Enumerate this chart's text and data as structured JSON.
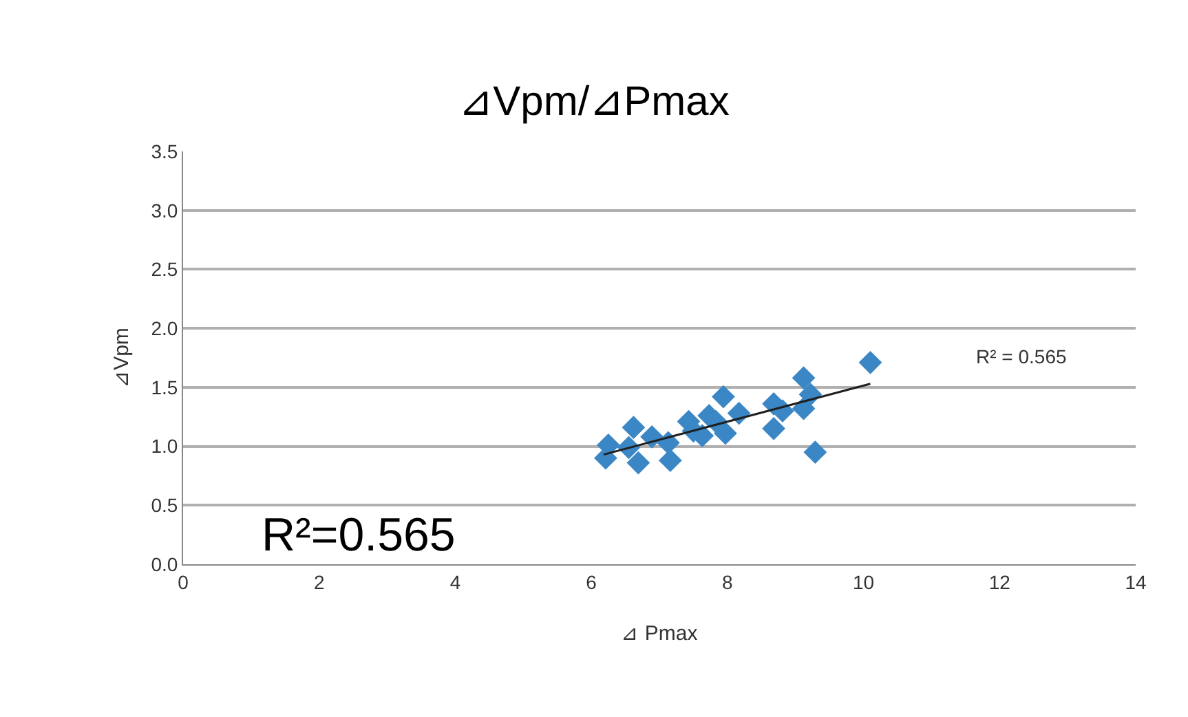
{
  "chart_data": {
    "type": "scatter",
    "title": "⊿Vpm/⊿Pmax",
    "xlabel": "⊿ Pmax",
    "ylabel": "⊿Vpm",
    "series": [
      {
        "color": "#3b87c6",
        "x": [
          6.25,
          6.21,
          6.55,
          6.62,
          6.69,
          6.89,
          7.13,
          7.16,
          7.43,
          7.5,
          7.63,
          7.73,
          7.83,
          7.94,
          7.97,
          8.17,
          8.68,
          8.68,
          8.81,
          9.12,
          9.12,
          9.22,
          9.29,
          10.1
        ],
        "values": [
          1.01,
          0.9,
          0.99,
          1.16,
          0.86,
          1.08,
          1.03,
          0.88,
          1.21,
          1.13,
          1.09,
          1.26,
          1.21,
          1.42,
          1.11,
          1.28,
          1.36,
          1.15,
          1.3,
          1.58,
          1.32,
          1.44,
          0.95,
          1.71
        ]
      },
      {
        "type": "line",
        "marker": "none",
        "color": "#1f1f1f",
        "x": [
          6.18,
          10.1
        ],
        "values": [
          0.93,
          1.53
        ]
      }
    ],
    "xlim": [
      0,
      14
    ],
    "xticks": [
      0,
      2,
      4,
      6,
      8,
      10,
      12,
      14
    ],
    "ylim": [
      0,
      3.5
    ],
    "yticks": [
      {
        "value": 0,
        "label": "0.0"
      },
      0.5,
      {
        "value": 1,
        "label": "1.0"
      },
      1.5,
      {
        "value": 2,
        "label": "2.0"
      },
      2.5,
      {
        "value": 3,
        "label": "3.0"
      },
      3.5
    ],
    "grid": "y",
    "marker": "diamond",
    "annotations": [
      "R² = 0.565",
      "R²=0.565"
    ]
  }
}
